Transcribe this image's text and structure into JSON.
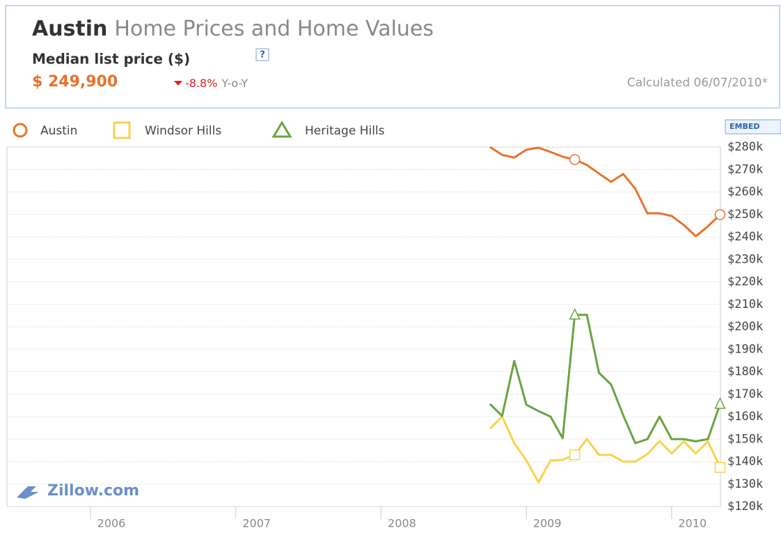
{
  "header": {
    "city": "Austin",
    "title": "Home Prices and Home Values",
    "metric": "Median list price ($)",
    "help": "?",
    "price": "$ 249,900",
    "change": "-8.8%",
    "change_unit": "Y-o-Y",
    "calculated": "Calculated 06/07/2010*"
  },
  "embed": "EMBED",
  "logo": "Zillow.com",
  "chart_data": {
    "type": "line",
    "x": [
      2008.75,
      2008.8333,
      2008.9167,
      2009.0,
      2009.0833,
      2009.1667,
      2009.25,
      2009.3333,
      2009.4167,
      2009.5,
      2009.5833,
      2009.6667,
      2009.75,
      2009.8333,
      2009.9167,
      2010.0,
      2010.0833,
      2010.1667,
      2010.25,
      2010.3333
    ],
    "series": [
      {
        "name": "Austin",
        "color": "#e8722a",
        "marker": "circle",
        "values": [
          280000,
          276500,
          275300,
          278800,
          279700,
          277800,
          275700,
          274400,
          272000,
          268200,
          264500,
          268000,
          261400,
          250500,
          250500,
          249300,
          245300,
          240300,
          244700,
          249900
        ]
      },
      {
        "name": "Windsor Hills",
        "color": "#f9d24a",
        "marker": "square",
        "values": [
          154700,
          160000,
          148200,
          140500,
          130800,
          140500,
          140800,
          143000,
          150000,
          143000,
          143000,
          140000,
          140000,
          143300,
          149100,
          143600,
          149000,
          143600,
          149000,
          137400
        ]
      },
      {
        "name": "Heritage Hills",
        "color": "#6aa33f",
        "marker": "triangle",
        "values": [
          165600,
          160300,
          184800,
          165300,
          162500,
          160000,
          150400,
          205300,
          205300,
          179500,
          174300,
          160600,
          148200,
          150000,
          160000,
          150000,
          150000,
          149000,
          150000,
          165600
        ]
      }
    ],
    "xlim": [
      2005.425,
      2010.336
    ],
    "xticks": [
      2006,
      2007,
      2008,
      2009,
      2010
    ],
    "ylim": [
      120000,
      280000
    ],
    "yticks": [
      {
        "value": 120000,
        "label": "$120k"
      },
      {
        "value": 130000,
        "label": "$130k"
      },
      {
        "value": 140000,
        "label": "$140k"
      },
      {
        "value": 150000,
        "label": "$150k"
      },
      {
        "value": 160000,
        "label": "$160k"
      },
      {
        "value": 170000,
        "label": "$170k"
      },
      {
        "value": 180000,
        "label": "$180k"
      },
      {
        "value": 190000,
        "label": "$190k"
      },
      {
        "value": 200000,
        "label": "$200k"
      },
      {
        "value": 210000,
        "label": "$210k"
      },
      {
        "value": 220000,
        "label": "$220k"
      },
      {
        "value": 230000,
        "label": "$230k"
      },
      {
        "value": 240000,
        "label": "$240k"
      },
      {
        "value": 250000,
        "label": "$250k"
      },
      {
        "value": 260000,
        "label": "$260k"
      },
      {
        "value": 270000,
        "label": "$270k"
      },
      {
        "value": 280000,
        "label": "$280k"
      }
    ],
    "grid": true
  }
}
